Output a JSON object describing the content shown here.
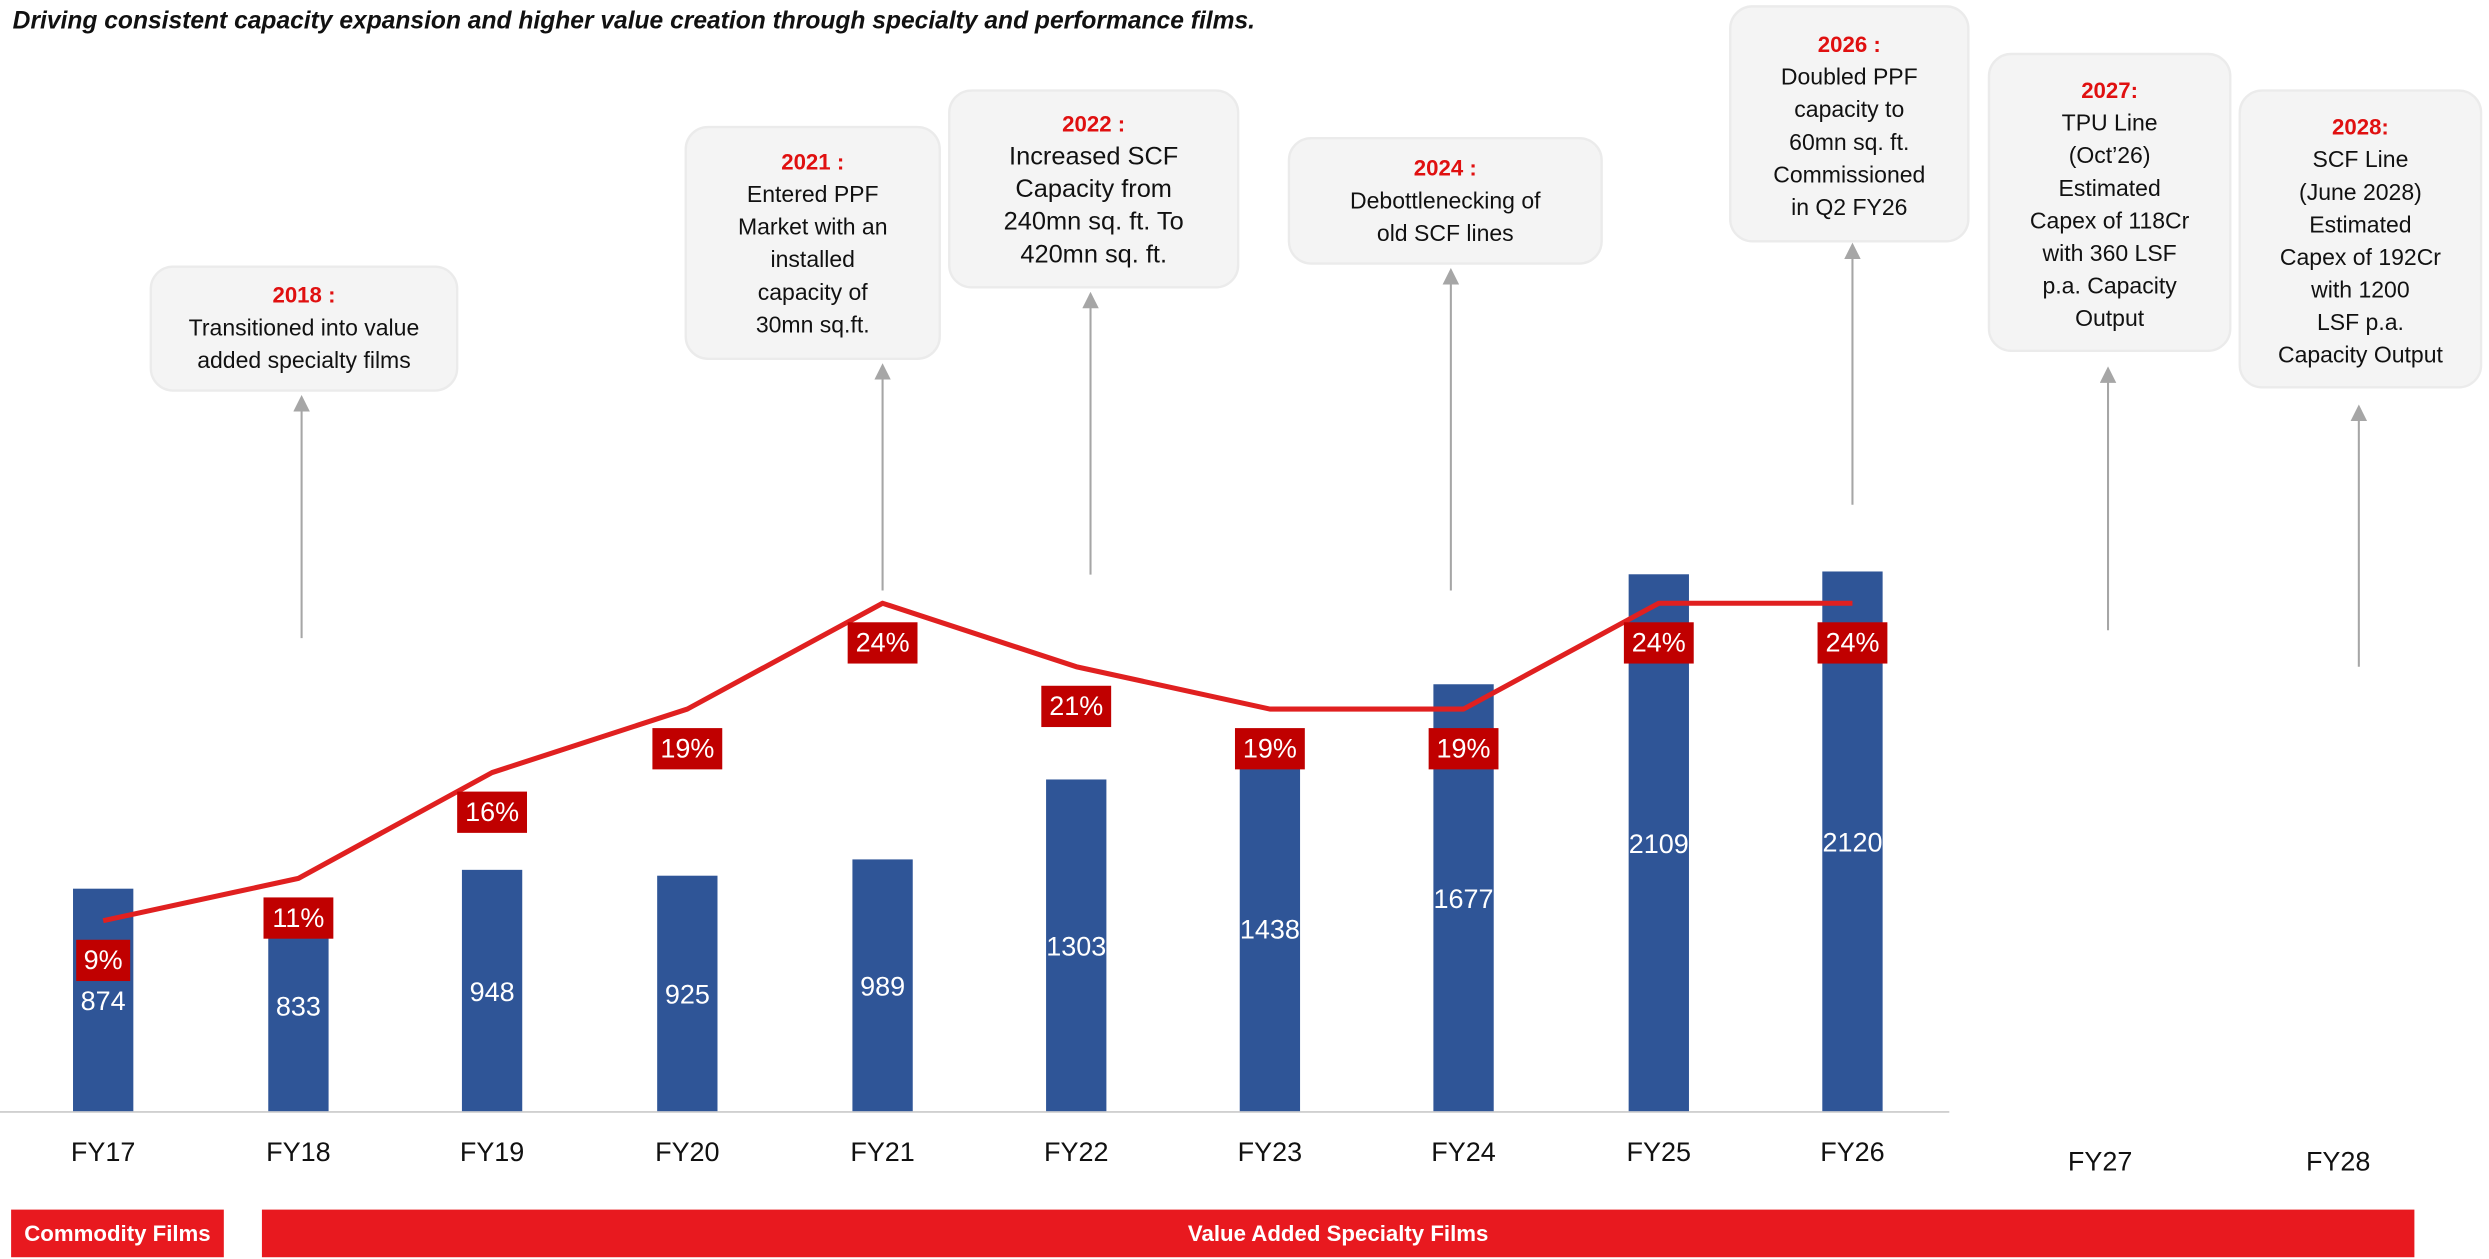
{
  "chart_data": {
    "type": "bar",
    "title": "Driving consistent capacity expansion and higher value creation through specialty and performance films.",
    "categories": [
      "FY17",
      "FY18",
      "FY19",
      "FY20",
      "FY21",
      "FY22",
      "FY23",
      "FY24",
      "FY25",
      "FY26",
      "FY27",
      "FY28"
    ],
    "values": [
      874,
      833,
      948,
      925,
      989,
      1303,
      1438,
      1677,
      2109,
      2120,
      null,
      null
    ],
    "color": "#2f5597",
    "line": {
      "type": "line",
      "values": [
        9,
        11,
        16,
        19,
        24,
        21,
        19,
        19,
        24,
        24,
        null,
        null
      ],
      "value_labels": [
        "9%",
        "11%",
        "16%",
        "19%",
        "24%",
        "21%",
        "19%",
        "19%",
        "24%",
        "24%",
        null,
        null
      ],
      "color": "#e02020"
    },
    "annotations": [
      {
        "year": "2018 :",
        "lines": [
          "Transitioned into value",
          "added specialty films"
        ]
      },
      {
        "year": "2021 :",
        "lines": [
          "Entered PPF",
          "Market with an",
          "installed",
          "capacity of",
          "30mn sq.ft."
        ]
      },
      {
        "year": "2022 :",
        "lines": [
          "Increased SCF",
          "Capacity from",
          "240mn sq. ft. To",
          "420mn sq. ft."
        ]
      },
      {
        "year": "2024 :",
        "lines": [
          "Debottlenecking of",
          "old SCF lines"
        ]
      },
      {
        "year": "2026 :",
        "lines": [
          "Doubled PPF",
          "capacity to",
          "60mn sq. ft.",
          "Commissioned",
          "in Q2 FY26"
        ]
      },
      {
        "year": "2027:",
        "lines": [
          "TPU Line",
          "(Oct’26)",
          "Estimated",
          "Capex of 118Cr",
          "with 360 LSF",
          "p.a. Capacity",
          "Output"
        ]
      },
      {
        "year": "2028:",
        "lines": [
          "SCF Line",
          "(June 2028)",
          "Estimated",
          "Capex of 192Cr",
          "with 1200",
          "LSF p.a.",
          "Capacity Output"
        ]
      }
    ],
    "segments": [
      "Commodity Films",
      "Value Added Specialty Films"
    ]
  }
}
